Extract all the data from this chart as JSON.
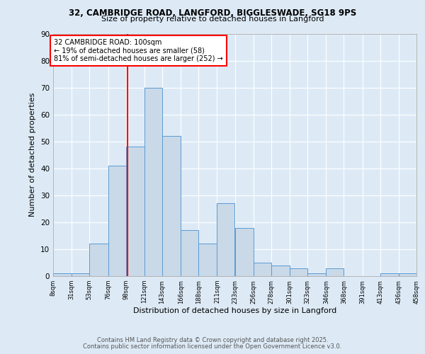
{
  "title1": "32, CAMBRIDGE ROAD, LANGFORD, BIGGLESWADE, SG18 9PS",
  "title2": "Size of property relative to detached houses in Langford",
  "xlabel": "Distribution of detached houses by size in Langford",
  "ylabel": "Number of detached properties",
  "bin_edges": [
    8,
    31,
    53,
    76,
    98,
    121,
    143,
    166,
    188,
    211,
    233,
    256,
    278,
    301,
    323,
    346,
    368,
    391,
    413,
    436,
    458
  ],
  "bin_counts": [
    1,
    1,
    12,
    41,
    48,
    70,
    52,
    17,
    12,
    27,
    18,
    5,
    4,
    3,
    1,
    3,
    0,
    0,
    1,
    1
  ],
  "bar_color": "#c9d9e8",
  "bar_edge_color": "#5b9bd5",
  "vline_x": 100,
  "vline_color": "red",
  "annotation_text": "32 CAMBRIDGE ROAD: 100sqm\n← 19% of detached houses are smaller (58)\n81% of semi-detached houses are larger (252) →",
  "annotation_box_color": "white",
  "annotation_box_edge_color": "red",
  "ylim": [
    0,
    90
  ],
  "yticks": [
    0,
    10,
    20,
    30,
    40,
    50,
    60,
    70,
    80,
    90
  ],
  "tick_labels": [
    "8sqm",
    "31sqm",
    "53sqm",
    "76sqm",
    "98sqm",
    "121sqm",
    "143sqm",
    "166sqm",
    "188sqm",
    "211sqm",
    "233sqm",
    "256sqm",
    "278sqm",
    "301sqm",
    "323sqm",
    "346sqm",
    "368sqm",
    "391sqm",
    "413sqm",
    "436sqm",
    "458sqm"
  ],
  "footer1": "Contains HM Land Registry data © Crown copyright and database right 2025.",
  "footer2": "Contains public sector information licensed under the Open Government Licence v3.0.",
  "bg_color": "#ddeaf6",
  "plot_bg_color": "#ddeaf6"
}
